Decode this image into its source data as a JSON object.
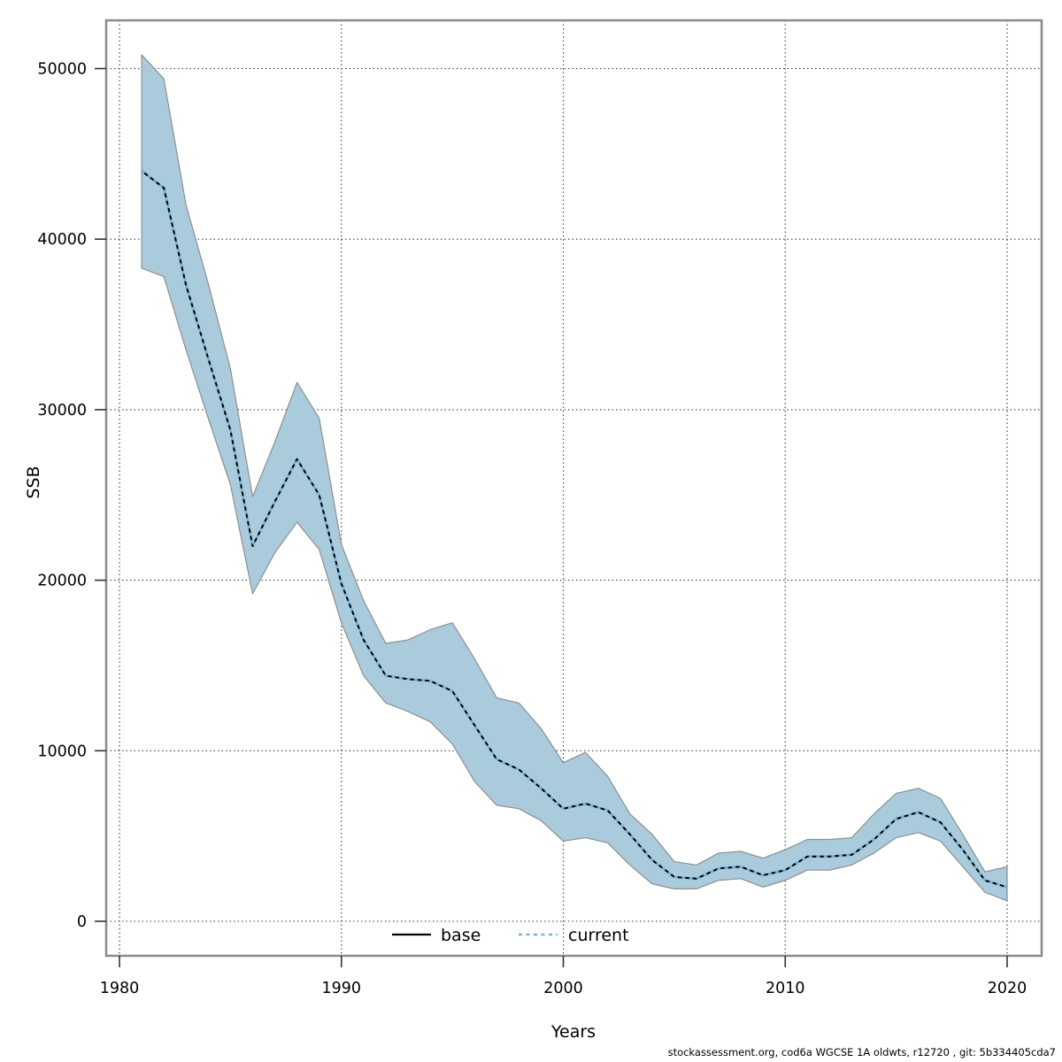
{
  "figure": {
    "footer": "stockassessment.org, cod6a  WGCSE  1A  oldwts, r12720 , git: 5b334405cda7"
  },
  "legend": {
    "items": [
      {
        "label": "base",
        "color": "#000000",
        "style": "solid"
      },
      {
        "label": "current",
        "color": "#6fb2d8",
        "style": "dotted"
      }
    ]
  },
  "axes": {
    "xlabel": "Years",
    "ylabel": "SSB",
    "x_ticks": [
      1980,
      1990,
      2000,
      2010,
      2020
    ],
    "y_ticks": [
      0,
      10000,
      20000,
      30000,
      40000,
      50000
    ]
  },
  "chart_data": {
    "type": "line",
    "title": "",
    "xlabel": "Years",
    "ylabel": "SSB",
    "xlim": [
      1979.4,
      2021.6
    ],
    "ylim": [
      -2000,
      52800
    ],
    "grid": true,
    "legend_position": "bottom-center-inside",
    "x": [
      1981,
      1982,
      1983,
      1984,
      1985,
      1986,
      1987,
      1988,
      1989,
      1990,
      1991,
      1992,
      1993,
      1994,
      1995,
      1996,
      1997,
      1998,
      1999,
      2000,
      2001,
      2002,
      2003,
      2004,
      2005,
      2006,
      2007,
      2008,
      2009,
      2010,
      2011,
      2012,
      2013,
      2014,
      2015,
      2016,
      2017,
      2018,
      2019,
      2020
    ],
    "series": [
      {
        "name": "base",
        "color": "#000000",
        "style": "solid",
        "values": [
          44000,
          43000,
          37300,
          33000,
          28800,
          22000,
          24600,
          27100,
          25000,
          19800,
          16500,
          14400,
          14200,
          14100,
          13500,
          11500,
          9500,
          8900,
          7800,
          6600,
          6900,
          6500,
          5100,
          3600,
          2600,
          2500,
          3100,
          3200,
          2700,
          3000,
          3800,
          3800,
          3900,
          4800,
          6000,
          6400,
          5800,
          4200,
          2400,
          2000
        ]
      },
      {
        "name": "current",
        "color": "#6fb2d8",
        "style": "dotted",
        "values": [
          44000,
          43000,
          37300,
          33000,
          28800,
          22000,
          24600,
          27100,
          25000,
          19800,
          16500,
          14400,
          14200,
          14100,
          13500,
          11500,
          9500,
          8900,
          7800,
          6600,
          6900,
          6500,
          5100,
          3600,
          2600,
          2500,
          3100,
          3200,
          2700,
          3000,
          3800,
          3800,
          3900,
          4800,
          6000,
          6400,
          5800,
          4200,
          2400,
          2000
        ]
      }
    ],
    "band": {
      "name": "confidence-interval",
      "fill": "#a9cbdc",
      "edge": "#8f8f8f",
      "lo": [
        38300,
        37800,
        33500,
        29500,
        25600,
        19200,
        21600,
        23400,
        21800,
        17500,
        14400,
        12800,
        12300,
        11700,
        10400,
        8200,
        6800,
        6600,
        5900,
        4700,
        4900,
        4600,
        3300,
        2200,
        1900,
        1900,
        2400,
        2500,
        2000,
        2400,
        3000,
        3000,
        3300,
        4000,
        4900,
        5200,
        4700,
        3200,
        1700,
        1200
      ],
      "hi": [
        50800,
        49400,
        42000,
        37400,
        32400,
        24900,
        28100,
        31600,
        29500,
        22100,
        18800,
        16300,
        16500,
        17100,
        17500,
        15400,
        13100,
        12800,
        11300,
        9300,
        9900,
        8500,
        6300,
        5100,
        3500,
        3300,
        4000,
        4100,
        3700,
        4200,
        4800,
        4800,
        4900,
        6300,
        7500,
        7800,
        7200,
        5100,
        2900,
        3200
      ]
    }
  }
}
